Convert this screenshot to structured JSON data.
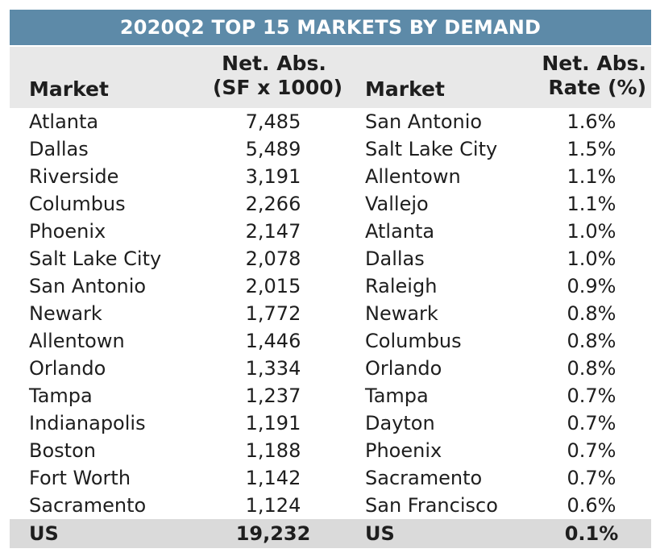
{
  "table": {
    "title": "2020Q2 TOP 15 MARKETS BY DEMAND",
    "headers": {
      "market_left": "Market",
      "net_abs_line1": "Net. Abs.",
      "net_abs_line2": "(SF x 1000)",
      "market_right": "Market",
      "rate_line1": "Net. Abs.",
      "rate_line2": "Rate (%)"
    },
    "rows": [
      {
        "market": "Atlanta",
        "net_abs": "7,485",
        "rate_market": "San Antonio",
        "rate": "1.6%"
      },
      {
        "market": "Dallas",
        "net_abs": "5,489",
        "rate_market": "Salt Lake City",
        "rate": "1.5%"
      },
      {
        "market": "Riverside",
        "net_abs": "3,191",
        "rate_market": "Allentown",
        "rate": "1.1%"
      },
      {
        "market": "Columbus",
        "net_abs": "2,266",
        "rate_market": "Vallejo",
        "rate": "1.1%"
      },
      {
        "market": "Phoenix",
        "net_abs": "2,147",
        "rate_market": "Atlanta",
        "rate": "1.0%"
      },
      {
        "market": "Salt Lake City",
        "net_abs": "2,078",
        "rate_market": "Dallas",
        "rate": "1.0%"
      },
      {
        "market": "San Antonio",
        "net_abs": "2,015",
        "rate_market": "Raleigh",
        "rate": "0.9%"
      },
      {
        "market": "Newark",
        "net_abs": "1,772",
        "rate_market": "Newark",
        "rate": "0.8%"
      },
      {
        "market": "Allentown",
        "net_abs": "1,446",
        "rate_market": "Columbus",
        "rate": "0.8%"
      },
      {
        "market": "Orlando",
        "net_abs": "1,334",
        "rate_market": "Orlando",
        "rate": "0.8%"
      },
      {
        "market": "Tampa",
        "net_abs": "1,237",
        "rate_market": "Tampa",
        "rate": "0.7%"
      },
      {
        "market": "Indianapolis",
        "net_abs": "1,191",
        "rate_market": "Dayton",
        "rate": "0.7%"
      },
      {
        "market": "Boston",
        "net_abs": "1,188",
        "rate_market": "Phoenix",
        "rate": "0.7%"
      },
      {
        "market": "Fort Worth",
        "net_abs": "1,142",
        "rate_market": "Sacramento",
        "rate": "0.7%"
      },
      {
        "market": "Sacramento",
        "net_abs": "1,124",
        "rate_market": "San Francisco",
        "rate": "0.6%"
      }
    ],
    "total": {
      "market": "US",
      "net_abs": "19,232",
      "rate_market": "US",
      "rate": "0.1%"
    }
  },
  "colors": {
    "title_bg": "#5d8aa8",
    "header_bg": "#e8e8e8",
    "total_bg": "#dadada"
  },
  "chart_data": {
    "type": "table",
    "title": "2020Q2 TOP 15 MARKETS BY DEMAND",
    "columns": [
      "Market",
      "Net. Abs. (SF x 1000)",
      "Market",
      "Net. Abs. Rate (%)"
    ],
    "net_absorption": {
      "markets": [
        "Atlanta",
        "Dallas",
        "Riverside",
        "Columbus",
        "Phoenix",
        "Salt Lake City",
        "San Antonio",
        "Newark",
        "Allentown",
        "Orlando",
        "Tampa",
        "Indianapolis",
        "Boston",
        "Fort Worth",
        "Sacramento"
      ],
      "values": [
        7485,
        5489,
        3191,
        2266,
        2147,
        2078,
        2015,
        1772,
        1446,
        1334,
        1237,
        1191,
        1188,
        1142,
        1124
      ],
      "us_total": 19232
    },
    "net_absorption_rate": {
      "markets": [
        "San Antonio",
        "Salt Lake City",
        "Allentown",
        "Vallejo",
        "Atlanta",
        "Dallas",
        "Raleigh",
        "Newark",
        "Columbus",
        "Orlando",
        "Tampa",
        "Dayton",
        "Phoenix",
        "Sacramento",
        "San Francisco"
      ],
      "values": [
        1.6,
        1.5,
        1.1,
        1.1,
        1.0,
        1.0,
        0.9,
        0.8,
        0.8,
        0.8,
        0.7,
        0.7,
        0.7,
        0.7,
        0.6
      ],
      "us_total": 0.1
    }
  }
}
